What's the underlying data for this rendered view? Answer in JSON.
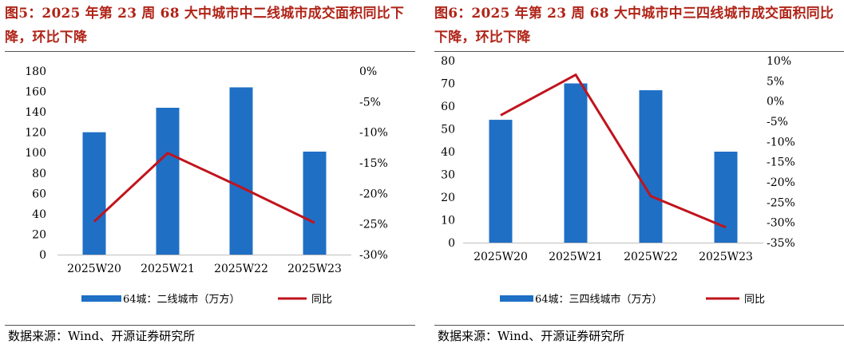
{
  "source_text": "数据来源：Wind、开源证券研究所",
  "chart_data": [
    {
      "type": "bar",
      "title": "图5：2025 年第 23 周 68 大中城市中二线城市成交面积同比下降，环比下降",
      "categories": [
        "2025W20",
        "2025W21",
        "2025W22",
        "2025W23"
      ],
      "series": [
        {
          "name": "64城：二线城市（万方）",
          "type": "bar",
          "axis": "left",
          "color": "#1f6fc5",
          "values": [
            120,
            144,
            164,
            101
          ]
        },
        {
          "name": "同比",
          "type": "line",
          "axis": "right",
          "color": "#c0141c",
          "values": [
            -24.6,
            -13.4,
            -19.0,
            -24.8
          ]
        }
      ],
      "left_axis": {
        "ylim": [
          0,
          180
        ],
        "ticks": [
          0,
          20,
          40,
          60,
          80,
          100,
          120,
          140,
          160,
          180
        ],
        "tick_labels": [
          "0",
          "20",
          "40",
          "60",
          "80",
          "100",
          "120",
          "140",
          "160",
          "180"
        ]
      },
      "right_axis": {
        "ylim": [
          -30,
          0
        ],
        "ticks": [
          0,
          -5,
          -10,
          -15,
          -20,
          -25,
          -30
        ],
        "tick_labels": [
          "0%",
          "-5%",
          "-10%",
          "-15%",
          "-20%",
          "-25%",
          "-30%"
        ]
      },
      "grid": false,
      "legend": "bottom"
    },
    {
      "type": "bar",
      "title": "图6：2025 年第 23 周 68 大中城市中三四线城市成交面积同比下降，环比下降",
      "categories": [
        "2025W20",
        "2025W21",
        "2025W22",
        "2025W23"
      ],
      "series": [
        {
          "name": "64城：三四线城市（万方）",
          "type": "bar",
          "axis": "left",
          "color": "#1f6fc5",
          "values": [
            54,
            70,
            67,
            40
          ]
        },
        {
          "name": "同比",
          "type": "line",
          "axis": "right",
          "color": "#c0141c",
          "values": [
            -3.5,
            6.5,
            -23.5,
            -31.2
          ]
        }
      ],
      "left_axis": {
        "ylim": [
          0,
          80
        ],
        "ticks": [
          0,
          10,
          20,
          30,
          40,
          50,
          60,
          70,
          80
        ],
        "tick_labels": [
          "0",
          "10",
          "20",
          "30",
          "40",
          "50",
          "60",
          "70",
          "80"
        ]
      },
      "right_axis": {
        "ylim": [
          -35,
          10
        ],
        "ticks": [
          10,
          5,
          0,
          -5,
          -10,
          -15,
          -20,
          -25,
          -30,
          -35
        ],
        "tick_labels": [
          "10%",
          "5%",
          "0%",
          "-5%",
          "-10%",
          "-15%",
          "-20%",
          "-25%",
          "-30%",
          "-35%"
        ]
      },
      "grid": false,
      "legend": "bottom"
    }
  ]
}
